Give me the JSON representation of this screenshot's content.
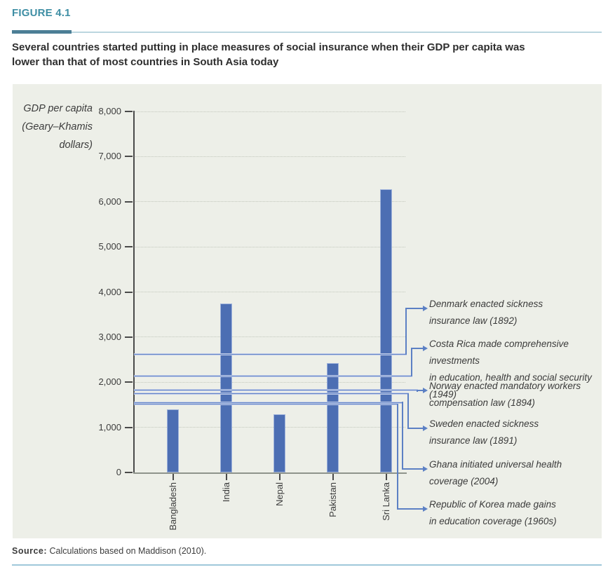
{
  "figure_label": "FIGURE 4.1",
  "title": "Several countries started putting in place measures of social insurance when their GDP per capita was\nlower than that of most countries in South Asia today",
  "chart_data": {
    "type": "bar",
    "ylabel": "GDP per capita\n(Geary–Khamis\ndollars)",
    "categories": [
      "Bangladesh",
      "India",
      "Nepal",
      "Pakistan",
      "Sri Lanka"
    ],
    "values": [
      1400,
      3740,
      1290,
      2420,
      6270
    ],
    "ylim": [
      0,
      8000
    ],
    "ytick_step": 1000,
    "ytick_labels": [
      "0",
      "1,000",
      "2,000",
      "3,000",
      "4,000",
      "5,000",
      "6,000",
      "7,000",
      "8,000"
    ],
    "grid": "dotted-horizontal",
    "legend": "none",
    "reference_lines": [
      {
        "value": 2610,
        "label": "Denmark enacted sickness\ninsurance law (1892)"
      },
      {
        "value": 2140,
        "label": "Costa Rica made comprehensive investments\nin education, health and social security (1949)"
      },
      {
        "value": 1820,
        "label": "Norway enacted mandatory workers\ncompensation law (1894)"
      },
      {
        "value": 1740,
        "label": "Sweden enacted sickness\ninsurance law (1891)"
      },
      {
        "value": 1550,
        "label": "Ghana initiated universal health\ncoverage (2004)"
      },
      {
        "value": 1510,
        "label": "Republic of Korea made gains\nin education coverage (1960s)"
      }
    ]
  },
  "source": {
    "prefix": "Source:",
    "text": " Calculations based on Maddison (2010)."
  },
  "colors": {
    "accent_teal": "#3E8EA4",
    "rule_dark": "#4C7F96",
    "rule_light": "#BBD6DF",
    "rule_bottom": "#9FC8DA",
    "panel_bg": "#EDEFE8",
    "bar_blue": "#4C6EB3",
    "line_blue": "#5C80C4",
    "text_dark": "#3C3C3C"
  }
}
